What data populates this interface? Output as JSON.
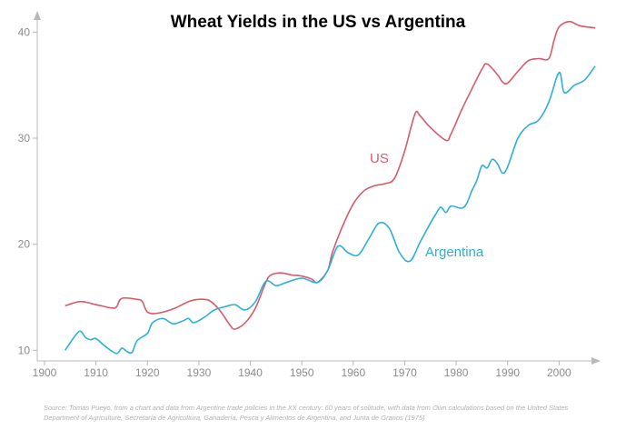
{
  "chart_data": {
    "type": "line",
    "title": "Wheat Yields in the US vs Argentina",
    "xlabel": "",
    "ylabel": "",
    "xlim": [
      1900,
      2007
    ],
    "ylim": [
      9,
      42
    ],
    "x_ticks": [
      "1900",
      "1910",
      "1920",
      "1930",
      "1940",
      "1950",
      "1960",
      "1970",
      "1980",
      "1990",
      "2000"
    ],
    "y_ticks": [
      "10",
      "20",
      "30",
      "40"
    ],
    "grid": false,
    "colors": {
      "US": "#d75a6c",
      "Argentina": "#2cb0d6",
      "axis": "#b9b9b9",
      "ticks": "#8c8c8c"
    },
    "series": [
      {
        "name": "US",
        "x": [
          1904,
          1907,
          1910,
          1913,
          1914,
          1915,
          1918,
          1919,
          1920,
          1922,
          1925,
          1928,
          1930,
          1932,
          1934,
          1936,
          1937,
          1939,
          1941,
          1943,
          1944,
          1946,
          1948,
          1950,
          1952,
          1953,
          1955,
          1956,
          1958,
          1960,
          1962,
          1964,
          1966,
          1968,
          1970,
          1972,
          1973,
          1975,
          1978,
          1979,
          1981,
          1983,
          1985,
          1986,
          1988,
          1989,
          1990,
          1992,
          1994,
          1996,
          1998,
          1999,
          2000,
          2002,
          2004,
          2007
        ],
        "values": [
          14.2,
          14.6,
          14.3,
          14.0,
          14.1,
          14.9,
          14.8,
          14.6,
          13.6,
          13.5,
          13.9,
          14.6,
          14.8,
          14.7,
          13.8,
          12.4,
          12.0,
          12.6,
          14.0,
          16.4,
          17.1,
          17.3,
          17.1,
          17.0,
          16.7,
          16.4,
          17.5,
          19.3,
          21.8,
          23.8,
          25.0,
          25.5,
          25.7,
          26.2,
          28.8,
          32.3,
          32.1,
          31.0,
          29.8,
          30.4,
          32.6,
          34.6,
          36.5,
          37.0,
          36.0,
          35.3,
          35.2,
          36.3,
          37.3,
          37.5,
          37.5,
          39.2,
          40.5,
          41.0,
          40.6,
          40.4
        ]
      },
      {
        "name": "Argentina",
        "x": [
          1904,
          1906,
          1907,
          1908,
          1909,
          1910,
          1912,
          1914,
          1915,
          1916,
          1917,
          1918,
          1920,
          1921,
          1923,
          1925,
          1927,
          1928,
          1929,
          1931,
          1933,
          1935,
          1937,
          1939,
          1941,
          1943,
          1945,
          1947,
          1950,
          1953,
          1955,
          1957,
          1959,
          1961,
          1963,
          1965,
          1967,
          1969,
          1971,
          1973,
          1975,
          1976,
          1977,
          1978,
          1979,
          1981,
          1982,
          1983,
          1984,
          1985,
          1986,
          1987,
          1988,
          1989,
          1990,
          1992,
          1994,
          1996,
          1998,
          2000,
          2001,
          2003,
          2005,
          2007
        ],
        "values": [
          10.0,
          11.4,
          11.8,
          11.2,
          11.0,
          11.1,
          10.3,
          9.7,
          10.2,
          9.9,
          9.8,
          10.9,
          11.6,
          12.6,
          13.0,
          12.5,
          12.8,
          13.0,
          12.6,
          13.1,
          13.8,
          14.1,
          14.3,
          13.8,
          14.6,
          16.5,
          16.1,
          16.4,
          16.8,
          16.4,
          17.5,
          19.8,
          19.2,
          19.0,
          20.5,
          22.0,
          21.5,
          19.2,
          18.4,
          20.2,
          22.0,
          22.8,
          23.5,
          23.0,
          23.6,
          23.4,
          23.8,
          25.0,
          26.0,
          27.4,
          27.2,
          28.0,
          27.6,
          26.7,
          27.3,
          30.0,
          31.2,
          31.7,
          33.4,
          36.2,
          34.3,
          35.0,
          35.5,
          36.8
        ]
      }
    ],
    "annotations": [
      {
        "text": "US",
        "series": "US"
      },
      {
        "text": "Argentina",
        "series": "Argentina"
      }
    ],
    "source": "Source: Tomas Pueyo, from a chart and data from Argentine trade policies in the XX century: 60 years of solitude, with data from Own calculations based on the United States Department of Agriculture, Secretaría de Agricultura, Ganadería, Pesca y Alimentos de Argentina, and Junta de Granos (1975)"
  }
}
